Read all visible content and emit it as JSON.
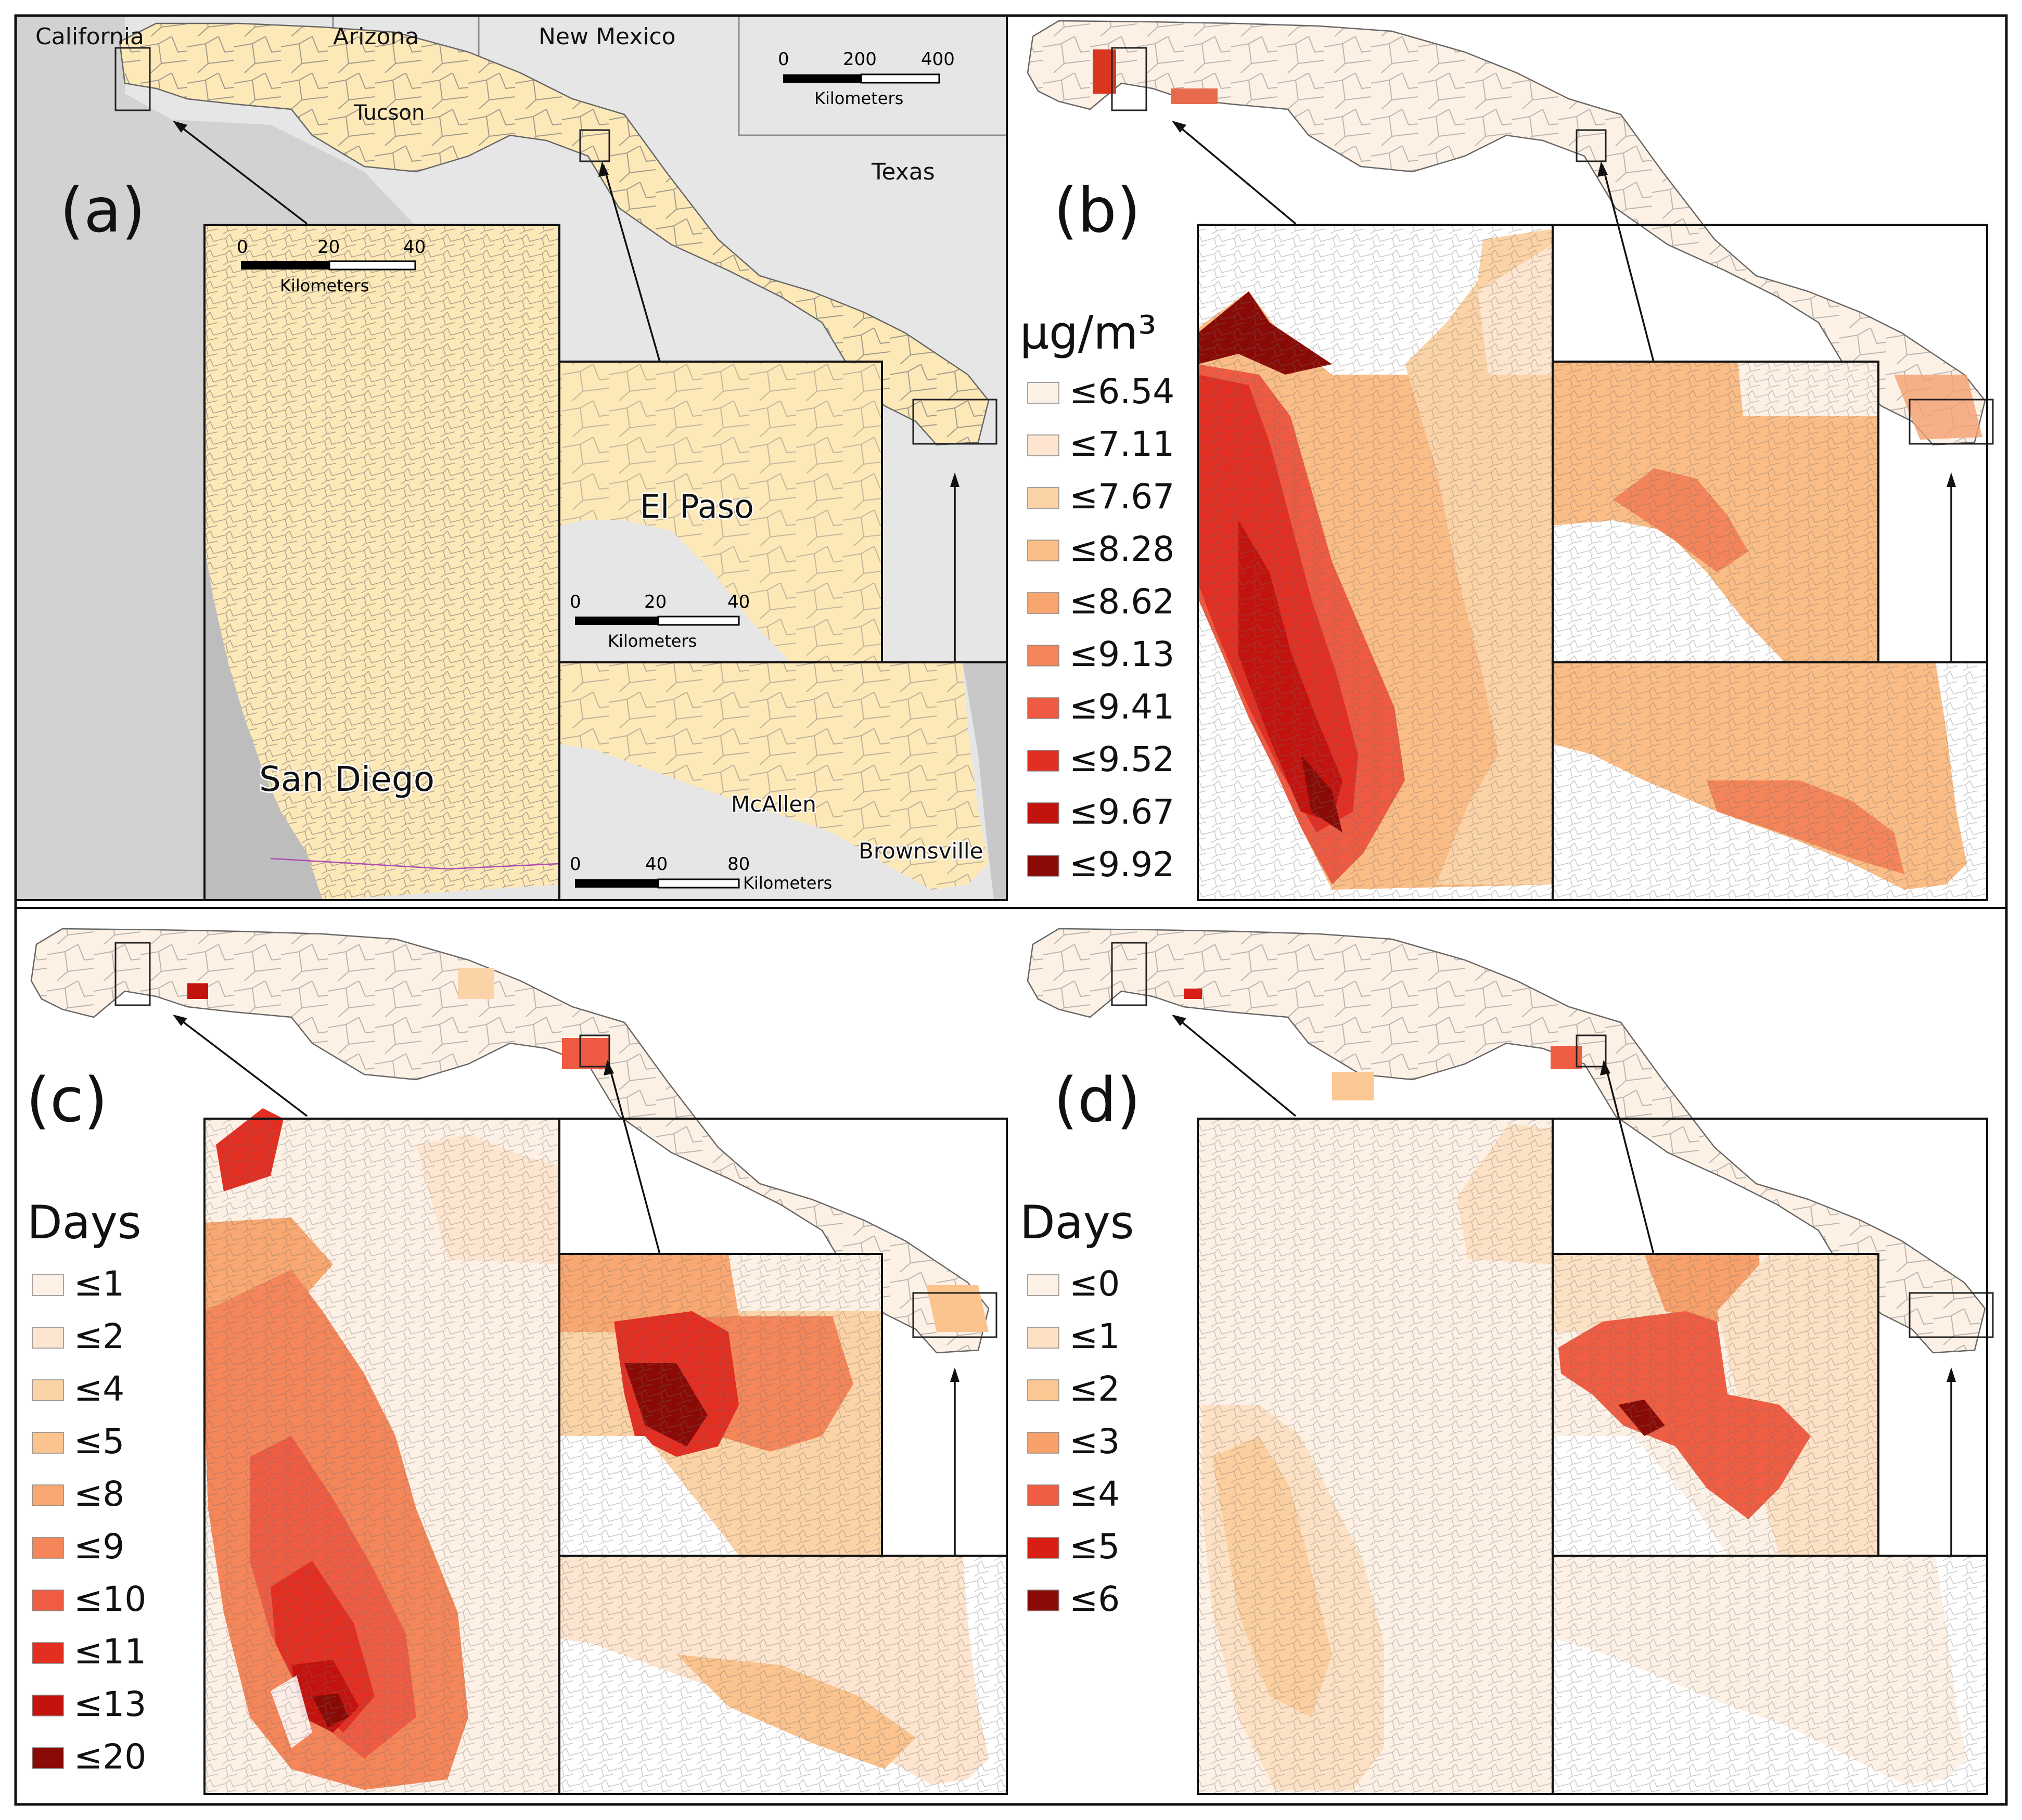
{
  "figure": {
    "colors": {
      "ocean": "#d2d2d2",
      "land_gray": "#e6e6e6",
      "beige": "#fde8b8",
      "tract_line": "#7a7a7a",
      "frame": "#1a1a1a"
    }
  },
  "panel_a": {
    "label": "(a)",
    "states": [
      "California",
      "Arizona",
      "New Mexico",
      "Texas"
    ],
    "cities": {
      "tucson": "Tucson",
      "san_diego": "San Diego",
      "el_paso": "El Paso",
      "mcallen": "McAllen",
      "brownsville": "Brownsville"
    },
    "main_scale": {
      "ticks": [
        "0",
        "200",
        "400"
      ],
      "unit": "Kilometers"
    },
    "sd_scale": {
      "ticks": [
        "0",
        "20",
        "40"
      ],
      "unit": "Kilometers"
    },
    "ep_scale": {
      "ticks": [
        "0",
        "20",
        "40"
      ],
      "unit": "Kilometers"
    },
    "rgv_scale": {
      "ticks": [
        "0",
        "40",
        "80"
      ],
      "unit": "Kilometers"
    }
  },
  "panel_b": {
    "label": "(b)",
    "legend_title": "μg/m³",
    "classes": [
      {
        "label": "≤6.54",
        "color": "#fdf1e6"
      },
      {
        "label": "≤7.11",
        "color": "#fde5cf"
      },
      {
        "label": "≤7.67",
        "color": "#fcd3a6"
      },
      {
        "label": "≤8.28",
        "color": "#fbbd86"
      },
      {
        "label": "≤8.62",
        "color": "#f7a46e"
      },
      {
        "label": "≤9.13",
        "color": "#f4855a"
      },
      {
        "label": "≤9.41",
        "color": "#ee5a42"
      },
      {
        "label": "≤9.52",
        "color": "#e12f23"
      },
      {
        "label": "≤9.67",
        "color": "#c3130f"
      },
      {
        "label": "≤9.92",
        "color": "#8a0a06"
      }
    ]
  },
  "panel_c": {
    "label": "(c)",
    "legend_title": "Days",
    "classes": [
      {
        "label": "≤1",
        "color": "#fdf1e6"
      },
      {
        "label": "≤2",
        "color": "#fde5cf"
      },
      {
        "label": "≤4",
        "color": "#fcd3a6"
      },
      {
        "label": "≤5",
        "color": "#fbc38e"
      },
      {
        "label": "≤8",
        "color": "#f8a870"
      },
      {
        "label": "≤9",
        "color": "#f4865a"
      },
      {
        "label": "≤10",
        "color": "#ee5c43"
      },
      {
        "label": "≤11",
        "color": "#e22f22"
      },
      {
        "label": "≤13",
        "color": "#c4120e"
      },
      {
        "label": "≤20",
        "color": "#8a0a06"
      }
    ]
  },
  "panel_d": {
    "label": "(d)",
    "legend_title": "Days",
    "classes": [
      {
        "label": "≤0",
        "color": "#fdf1e6"
      },
      {
        "label": "≤1",
        "color": "#fde1c4"
      },
      {
        "label": "≤2",
        "color": "#fbc894"
      },
      {
        "label": "≤3",
        "color": "#f7a06a"
      },
      {
        "label": "≤4",
        "color": "#ef5d43"
      },
      {
        "label": "≤5",
        "color": "#d91e16"
      },
      {
        "label": "≤6",
        "color": "#8a0a06"
      }
    ]
  }
}
